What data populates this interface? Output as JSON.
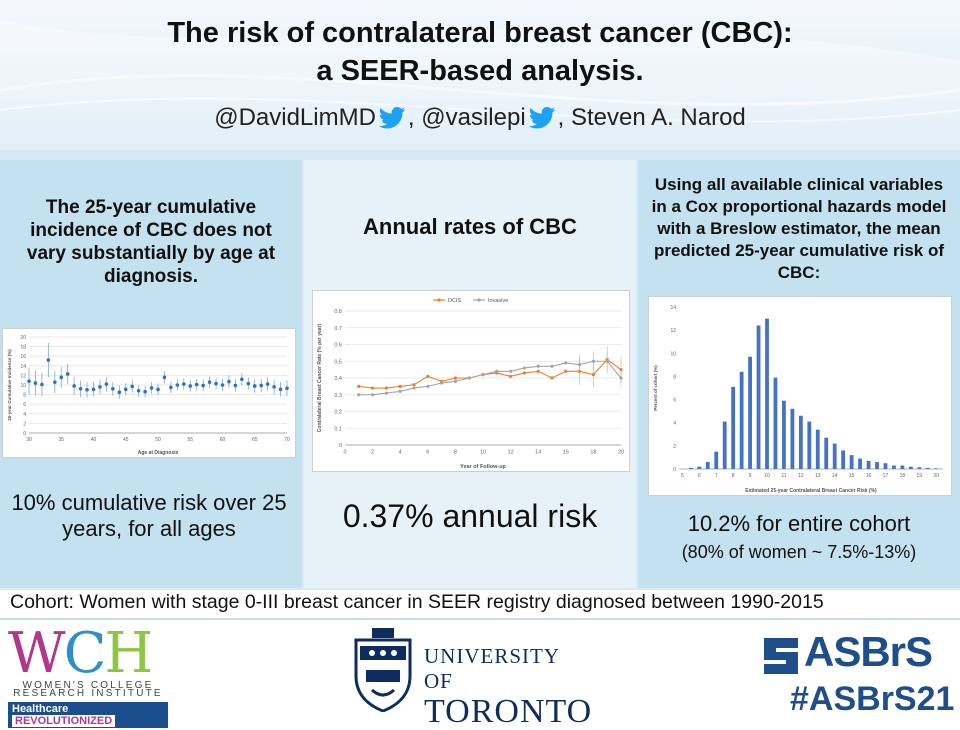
{
  "title_line1": "The risk of contralateral breast cancer (CBC):",
  "title_line2": "a SEER-based analysis.",
  "authors": {
    "a1": "@DavidLimMD",
    "sep1": ", @vasilepi",
    "sep2": ", Steven A. Narod"
  },
  "left_panel": {
    "heading": "The 25-year cumulative incidence of CBC does not vary substantially by age at diagnosis.",
    "stat": "10% cumulative risk over 25 years, for all ages"
  },
  "mid_panel": {
    "heading": "Annual rates of CBC",
    "stat": "0.37% annual risk"
  },
  "right_panel": {
    "heading": "Using all available clinical variables in a Cox proportional hazards model with a Breslow estimator, the mean predicted 25-year cumulative risk of CBC:",
    "stat": "10.2% for entire cohort",
    "substat": "(80% of women ~ 7.5%-13%)"
  },
  "cohort": "Cohort: Women with stage 0-III breast cancer in SEER registry diagnosed between 1990-2015",
  "logos": {
    "wch_sub1": "WOMEN'S COLLEGE",
    "wch_sub2": "RESEARCH INSTITUTE",
    "wch_tag": "Healthcare",
    "wch_tag2": "REVOLUTIONIZED",
    "uoft1": "UNIVERSITY OF",
    "uoft2": "TORONTO",
    "asbrs": "ASBrS",
    "hashtag": "#ASBrS21"
  },
  "colors": {
    "orange": "#ed7d31",
    "gray": "#a5a5a5",
    "blue": "#4472c4",
    "twitter": "#1da1f2"
  },
  "chart_data": [
    {
      "type": "scatter",
      "xlabel": "Age at Diagnosis",
      "ylabel": "25-year Cumulative Incidence (%)",
      "xlim": [
        30,
        70
      ],
      "ylim": [
        0,
        20
      ],
      "x_ticks": [
        30,
        35,
        40,
        45,
        50,
        55,
        60,
        65,
        70
      ],
      "y_ticks": [
        0,
        2,
        4,
        6,
        8,
        10,
        12,
        14,
        16,
        18,
        20
      ],
      "x": [
        30,
        31,
        32,
        33,
        34,
        35,
        36,
        37,
        38,
        39,
        40,
        41,
        42,
        43,
        44,
        45,
        46,
        47,
        48,
        49,
        50,
        51,
        52,
        53,
        54,
        55,
        56,
        57,
        58,
        59,
        60,
        61,
        62,
        63,
        64,
        65,
        66,
        67,
        68,
        69,
        70
      ],
      "values": [
        10.8,
        10.4,
        10.1,
        15.2,
        10.6,
        11.6,
        12.3,
        9.8,
        9.2,
        9,
        9.1,
        9.6,
        10.2,
        9.2,
        8.5,
        9.1,
        9.7,
        8.8,
        8.6,
        9.4,
        9.1,
        11.6,
        9.5,
        10,
        10.2,
        9.8,
        10.1,
        9.9,
        10.6,
        10.3,
        10,
        10.7,
        9.9,
        11.2,
        10.3,
        9.8,
        9.9,
        10.2,
        9.6,
        9.1,
        9.3
      ],
      "err": [
        2.8,
        2.6,
        2.5,
        3.6,
        2.3,
        2.2,
        2.1,
        1.9,
        1.7,
        1.6,
        1.5,
        1.5,
        1.5,
        1.4,
        1.4,
        1.3,
        1.3,
        1.2,
        1.2,
        1.2,
        1.2,
        1.3,
        1.2,
        1.2,
        1.2,
        1.2,
        1.2,
        1.2,
        1.2,
        1.2,
        1.3,
        1.3,
        1.3,
        1.3,
        1.3,
        1.4,
        1.4,
        1.4,
        1.5,
        1.5,
        1.6
      ],
      "grid": true
    },
    {
      "type": "line",
      "xlabel": "Year of Follow-up",
      "ylabel": "Contralateral Breast Cancer Rate (% per year)",
      "xlim": [
        0,
        20
      ],
      "ylim": [
        0,
        0.8
      ],
      "x_ticks": [
        0,
        2,
        4,
        6,
        8,
        10,
        12,
        14,
        16,
        18,
        20
      ],
      "y_ticks": [
        0,
        0.1,
        0.2,
        0.3,
        0.4,
        0.5,
        0.6,
        0.7,
        0.8
      ],
      "x": [
        1,
        2,
        3,
        4,
        5,
        6,
        7,
        8,
        9,
        10,
        11,
        12,
        13,
        14,
        15,
        16,
        17,
        18,
        19,
        20
      ],
      "legend_position": "top-center",
      "series": [
        {
          "name": "DCIS",
          "color": "#ed7d31",
          "values": [
            0.35,
            0.34,
            0.34,
            0.35,
            0.36,
            0.41,
            0.38,
            0.4,
            0.4,
            0.42,
            0.43,
            0.41,
            0.43,
            0.44,
            0.4,
            0.44,
            0.44,
            0.42,
            0.51,
            0.45
          ]
        },
        {
          "name": "Invasive",
          "color": "#a5a5a5",
          "values": [
            0.3,
            0.3,
            0.31,
            0.32,
            0.34,
            0.35,
            0.37,
            0.38,
            0.4,
            0.42,
            0.44,
            0.44,
            0.46,
            0.47,
            0.47,
            0.49,
            0.48,
            0.5,
            0.5,
            0.4
          ]
        }
      ],
      "grid": true
    },
    {
      "type": "bar",
      "xlabel": "Estimated 25-year Contralateral Breast Cancer Risk (%)",
      "ylabel": "Percent of cohort (%)",
      "ylim": [
        0,
        14
      ],
      "y_ticks": [
        0,
        2,
        4,
        6,
        8,
        10,
        12,
        14
      ],
      "x_ticks": [
        5,
        6,
        7,
        8,
        9,
        10,
        11,
        12,
        13,
        14,
        15,
        16,
        17,
        18,
        19,
        20
      ],
      "x": [
        5.5,
        6,
        6.5,
        7,
        7.5,
        8,
        8.5,
        9,
        9.5,
        10,
        10.5,
        11,
        11.5,
        12,
        12.5,
        13,
        13.5,
        14,
        14.5,
        15,
        15.5,
        16,
        16.5,
        17,
        17.5,
        18,
        18.5,
        19,
        19.5,
        20
      ],
      "values": [
        0.1,
        0.2,
        0.6,
        1.5,
        4.1,
        7.1,
        8.4,
        9.7,
        12.4,
        13,
        7.9,
        5.9,
        5.2,
        4.6,
        4.1,
        3.4,
        2.7,
        2.2,
        1.6,
        1.2,
        0.9,
        0.7,
        0.6,
        0.5,
        0.3,
        0.3,
        0.2,
        0.15,
        0.1,
        0.05
      ],
      "grid": false
    }
  ]
}
